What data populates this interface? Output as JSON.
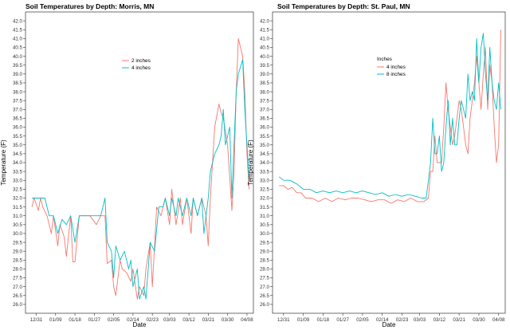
{
  "colors": {
    "red": "#F8766D",
    "teal": "#00BFC4",
    "frame": "#333333"
  },
  "chart_data": [
    {
      "type": "line",
      "title": "Soil Temperatures by Depth: Morris, MN",
      "xlabel": "Date",
      "ylabel": "Temperature (F)",
      "ylim": [
        25.5,
        42.5
      ],
      "xlim": [
        "2020-12-26",
        "2021-04-11"
      ],
      "grid": false,
      "legend_title": "",
      "legend_position": "top-center",
      "x_ticks": [
        "12/31",
        "01/09",
        "01/18",
        "01/27",
        "02/05",
        "02/14",
        "02/23",
        "03/03",
        "03/12",
        "03/21",
        "03/30",
        "04/08"
      ],
      "y_ticks": [
        "26.0",
        "26.5",
        "27.0",
        "27.5",
        "28.0",
        "28.5",
        "29.0",
        "29.5",
        "30.0",
        "30.5",
        "31.0",
        "31.5",
        "32.0",
        "32.5",
        "33.0",
        "33.5",
        "34.0",
        "34.5",
        "35.0",
        "35.5",
        "36.0",
        "36.5",
        "37.0",
        "37.5",
        "38.0",
        "38.5",
        "39.0",
        "39.5",
        "40.0",
        "40.5",
        "41.0",
        "41.5",
        "42.0"
      ],
      "series": [
        {
          "name": "2 inches",
          "color": "#F8766D",
          "x": [
            "2020-12-29",
            "2020-12-30",
            "2021-01-01",
            "2021-01-02",
            "2021-01-03",
            "2021-01-05",
            "2021-01-07",
            "2021-01-08",
            "2021-01-10",
            "2021-01-11",
            "2021-01-13",
            "2021-01-14",
            "2021-01-16",
            "2021-01-17",
            "2021-01-18",
            "2021-01-20",
            "2021-01-22",
            "2021-01-25",
            "2021-01-28",
            "2021-01-30",
            "2021-02-01",
            "2021-02-02",
            "2021-02-04",
            "2021-02-05",
            "2021-02-06",
            "2021-02-08",
            "2021-02-09",
            "2021-02-11",
            "2021-02-13",
            "2021-02-14",
            "2021-02-16",
            "2021-02-17",
            "2021-02-19",
            "2021-02-20",
            "2021-02-22",
            "2021-02-23",
            "2021-02-25",
            "2021-02-27",
            "2021-03-01",
            "2021-03-03",
            "2021-03-04",
            "2021-03-06",
            "2021-03-08",
            "2021-03-09",
            "2021-03-11",
            "2021-03-13",
            "2021-03-14",
            "2021-03-16",
            "2021-03-18",
            "2021-03-20",
            "2021-03-21",
            "2021-03-22",
            "2021-03-24",
            "2021-03-26",
            "2021-03-27",
            "2021-03-28",
            "2021-03-30",
            "2021-04-01",
            "2021-04-02",
            "2021-04-03",
            "2021-04-04",
            "2021-04-06",
            "2021-04-07",
            "2021-04-08",
            "2021-04-09"
          ],
          "y": [
            31.5,
            32.0,
            31.3,
            32.0,
            31.5,
            31.0,
            30.0,
            31.0,
            29.3,
            30.5,
            29.8,
            28.7,
            31.0,
            28.4,
            28.4,
            31.0,
            31.0,
            31.0,
            30.5,
            31.0,
            31.0,
            28.3,
            28.5,
            27.0,
            26.5,
            28.5,
            28.0,
            27.8,
            27.3,
            28.0,
            26.3,
            27.0,
            26.5,
            28.0,
            29.5,
            27.0,
            31.5,
            31.0,
            32.0,
            30.5,
            32.5,
            30.5,
            32.0,
            30.5,
            32.0,
            30.0,
            32.0,
            31.0,
            32.0,
            31.0,
            29.3,
            32.0,
            36.0,
            37.3,
            36.8,
            36.5,
            35.0,
            31.3,
            33.5,
            38.0,
            41.0,
            40.0,
            38.0,
            34.5,
            32.5
          ]
        },
        {
          "name": "4 inches",
          "color": "#00BFC4",
          "x": [
            "2020-12-29",
            "2021-01-01",
            "2021-01-04",
            "2021-01-06",
            "2021-01-08",
            "2021-01-10",
            "2021-01-12",
            "2021-01-14",
            "2021-01-16",
            "2021-01-18",
            "2021-01-20",
            "2021-01-22",
            "2021-01-26",
            "2021-01-30",
            "2021-02-01",
            "2021-02-02",
            "2021-02-04",
            "2021-02-05",
            "2021-02-06",
            "2021-02-08",
            "2021-02-10",
            "2021-02-12",
            "2021-02-13",
            "2021-02-14",
            "2021-02-16",
            "2021-02-17",
            "2021-02-19",
            "2021-02-20",
            "2021-02-22",
            "2021-02-24",
            "2021-02-26",
            "2021-02-28",
            "2021-03-01",
            "2021-03-03",
            "2021-03-04",
            "2021-03-06",
            "2021-03-07",
            "2021-03-09",
            "2021-03-11",
            "2021-03-13",
            "2021-03-14",
            "2021-03-16",
            "2021-03-18",
            "2021-03-19",
            "2021-03-21",
            "2021-03-22",
            "2021-03-24",
            "2021-03-26",
            "2021-03-27",
            "2021-03-28",
            "2021-03-29",
            "2021-03-31",
            "2021-04-01",
            "2021-04-03",
            "2021-04-04",
            "2021-04-06",
            "2021-04-07",
            "2021-04-08",
            "2021-04-09"
          ],
          "y": [
            32.0,
            32.0,
            32.0,
            31.0,
            31.0,
            30.0,
            30.8,
            30.5,
            31.0,
            29.5,
            31.0,
            31.0,
            31.0,
            31.0,
            32.0,
            29.5,
            29.0,
            27.5,
            29.3,
            28.5,
            29.0,
            28.0,
            28.5,
            27.0,
            28.0,
            26.3,
            27.0,
            26.3,
            29.5,
            29.0,
            31.5,
            31.5,
            32.0,
            31.0,
            32.0,
            31.0,
            32.0,
            31.0,
            32.0,
            31.0,
            32.0,
            31.0,
            32.0,
            30.0,
            32.0,
            33.5,
            34.5,
            35.0,
            35.5,
            37.0,
            35.0,
            36.0,
            32.0,
            38.0,
            39.0,
            39.8,
            37.0,
            35.0,
            33.0
          ]
        }
      ]
    },
    {
      "type": "line",
      "title": "Soil Temperatures by Depth: St. Paul, MN",
      "xlabel": "Date",
      "ylabel": "Temperature (F)",
      "ylim": [
        25.5,
        42.5
      ],
      "xlim": [
        "2020-12-26",
        "2021-04-11"
      ],
      "grid": false,
      "legend_title": "Inches",
      "legend_position": "top-center",
      "x_ticks": [
        "12/31",
        "01/09",
        "01/18",
        "01/27",
        "02/05",
        "02/14",
        "02/23",
        "03/03",
        "03/12",
        "03/21",
        "03/30",
        "04/08"
      ],
      "y_ticks": [
        "26.0",
        "26.5",
        "27.0",
        "27.5",
        "28.0",
        "28.5",
        "29.0",
        "29.5",
        "30.0",
        "30.5",
        "31.0",
        "31.5",
        "32.0",
        "32.5",
        "33.0",
        "33.5",
        "34.0",
        "34.5",
        "35.0",
        "35.5",
        "36.0",
        "36.5",
        "37.0",
        "37.5",
        "38.0",
        "38.5",
        "39.0",
        "39.5",
        "40.0",
        "40.5",
        "41.0",
        "41.5",
        "42.0"
      ],
      "series": [
        {
          "name": "4 inches",
          "color": "#F8766D",
          "x": [
            "2020-12-29",
            "2020-12-31",
            "2021-01-02",
            "2021-01-04",
            "2021-01-06",
            "2021-01-08",
            "2021-01-10",
            "2021-01-13",
            "2021-01-16",
            "2021-01-19",
            "2021-01-22",
            "2021-01-25",
            "2021-01-28",
            "2021-01-31",
            "2021-02-03",
            "2021-02-06",
            "2021-02-09",
            "2021-02-12",
            "2021-02-15",
            "2021-02-18",
            "2021-02-21",
            "2021-02-24",
            "2021-02-27",
            "2021-03-02",
            "2021-03-05",
            "2021-03-07",
            "2021-03-08",
            "2021-03-09",
            "2021-03-10",
            "2021-03-11",
            "2021-03-13",
            "2021-03-14",
            "2021-03-15",
            "2021-03-16",
            "2021-03-18",
            "2021-03-19",
            "2021-03-20",
            "2021-03-21",
            "2021-03-22",
            "2021-03-23",
            "2021-03-24",
            "2021-03-25",
            "2021-03-26",
            "2021-03-28",
            "2021-03-29",
            "2021-03-30",
            "2021-03-31",
            "2021-04-01",
            "2021-04-02",
            "2021-04-03",
            "2021-04-04",
            "2021-04-05",
            "2021-04-06",
            "2021-04-07",
            "2021-04-08",
            "2021-04-09"
          ],
          "y": [
            32.7,
            32.7,
            32.5,
            32.6,
            32.3,
            32.3,
            32.0,
            32.0,
            31.8,
            32.0,
            31.8,
            32.0,
            31.9,
            32.0,
            32.0,
            31.9,
            31.8,
            31.9,
            31.9,
            31.7,
            31.9,
            31.8,
            32.0,
            31.8,
            31.8,
            32.0,
            33.5,
            33.5,
            35.5,
            34.0,
            34.0,
            36.0,
            38.5,
            37.0,
            35.0,
            35.5,
            36.5,
            37.5,
            37.0,
            36.0,
            35.0,
            34.5,
            36.5,
            38.5,
            40.0,
            38.5,
            37.0,
            39.0,
            40.5,
            37.0,
            39.5,
            38.5,
            36.0,
            34.0,
            35.0,
            41.5
          ]
        },
        {
          "name": "8 inches",
          "color": "#00BFC4",
          "x": [
            "2020-12-29",
            "2020-12-31",
            "2021-01-03",
            "2021-01-06",
            "2021-01-09",
            "2021-01-12",
            "2021-01-15",
            "2021-01-18",
            "2021-01-21",
            "2021-01-24",
            "2021-01-27",
            "2021-01-30",
            "2021-02-02",
            "2021-02-05",
            "2021-02-08",
            "2021-02-11",
            "2021-02-14",
            "2021-02-17",
            "2021-02-20",
            "2021-02-23",
            "2021-02-26",
            "2021-03-01",
            "2021-03-04",
            "2021-03-06",
            "2021-03-07",
            "2021-03-08",
            "2021-03-09",
            "2021-03-10",
            "2021-03-11",
            "2021-03-12",
            "2021-03-13",
            "2021-03-14",
            "2021-03-15",
            "2021-03-16",
            "2021-03-17",
            "2021-03-18",
            "2021-03-19",
            "2021-03-20",
            "2021-03-21",
            "2021-03-22",
            "2021-03-23",
            "2021-03-24",
            "2021-03-25",
            "2021-03-26",
            "2021-03-27",
            "2021-03-28",
            "2021-03-29",
            "2021-03-30",
            "2021-03-31",
            "2021-04-01",
            "2021-04-02",
            "2021-04-03",
            "2021-04-04",
            "2021-04-05",
            "2021-04-06",
            "2021-04-07",
            "2021-04-08",
            "2021-04-09"
          ],
          "y": [
            33.2,
            33.0,
            33.0,
            32.8,
            32.5,
            32.5,
            32.3,
            32.4,
            32.3,
            32.4,
            32.3,
            32.4,
            32.3,
            32.4,
            32.3,
            32.2,
            32.3,
            32.1,
            32.2,
            32.1,
            32.2,
            32.1,
            32.0,
            32.0,
            33.0,
            34.0,
            36.5,
            34.5,
            34.5,
            35.5,
            33.5,
            34.0,
            36.0,
            37.5,
            35.0,
            36.5,
            35.0,
            35.0,
            36.5,
            37.5,
            37.0,
            36.5,
            39.0,
            37.5,
            38.0,
            37.5,
            41.0,
            38.5,
            40.5,
            41.3,
            39.0,
            37.5,
            40.5,
            38.5,
            37.5,
            37.0,
            38.5,
            37.0
          ]
        }
      ]
    }
  ]
}
